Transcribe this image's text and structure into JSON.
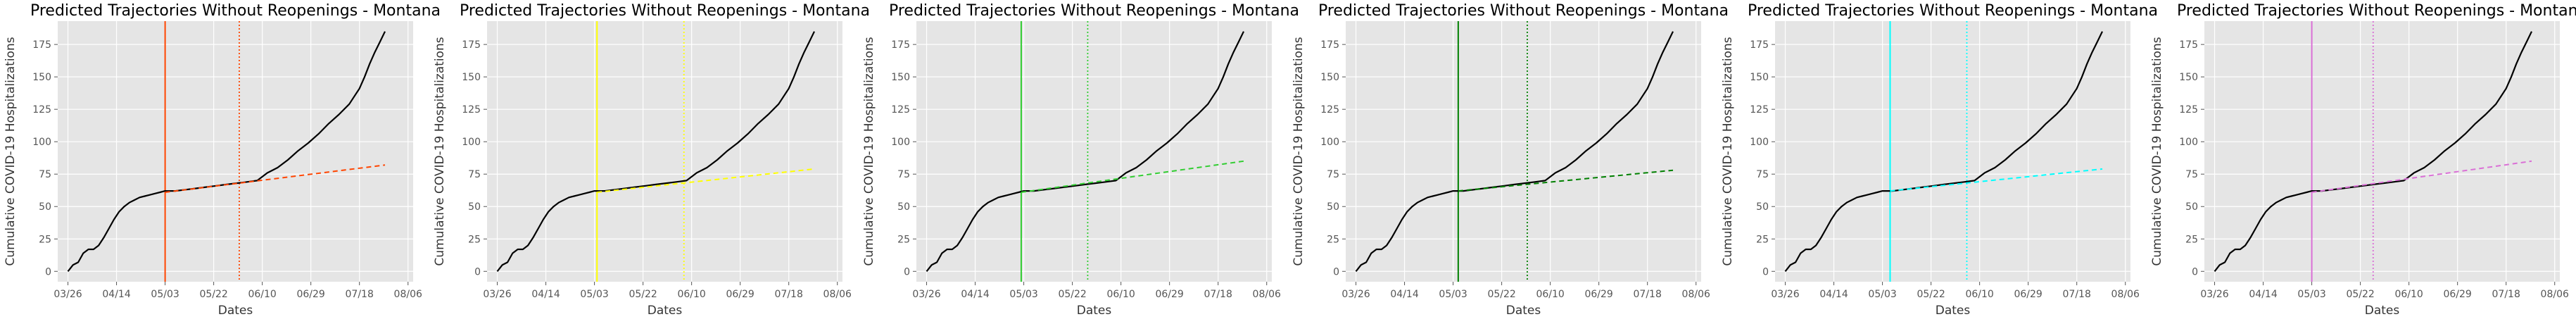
{
  "chart_data": [
    {
      "type": "line",
      "title": "Predicted Trajectories Without Reopenings - Montana",
      "xlabel": "Dates",
      "ylabel": "Cumulative COVID-19 Hospitalizations",
      "x_ticks": [
        "03/26",
        "04/14",
        "05/03",
        "05/22",
        "06/10",
        "06/29",
        "07/18",
        "08/06"
      ],
      "y_ticks": [
        0,
        25,
        50,
        75,
        100,
        125,
        150,
        175
      ],
      "xlim": [
        "03/22",
        "08/08"
      ],
      "ylim": [
        -8,
        193
      ],
      "grid": true,
      "accent_color": "#ff4500",
      "solid_vline": "05/03",
      "dotted_vline": "06/01",
      "observed": {
        "x": [
          "03/26",
          "03/28",
          "03/30",
          "04/01",
          "04/03",
          "04/05",
          "04/07",
          "04/09",
          "04/11",
          "04/13",
          "04/15",
          "04/17",
          "04/19",
          "04/21",
          "04/23",
          "04/25",
          "04/27",
          "04/29",
          "05/01",
          "05/03",
          "05/07",
          "05/11",
          "05/15",
          "05/19",
          "05/23",
          "05/27",
          "05/31",
          "06/04",
          "06/08",
          "06/12",
          "06/16",
          "06/20",
          "06/24",
          "06/28",
          "07/02",
          "07/06",
          "07/10",
          "07/14",
          "07/18",
          "07/20",
          "07/22",
          "07/24",
          "07/26",
          "07/28"
        ],
        "y": [
          0,
          5,
          7,
          14,
          17,
          17,
          20,
          26,
          33,
          40,
          46,
          50,
          53,
          55,
          57,
          58,
          59,
          60,
          61,
          62,
          62,
          63,
          64,
          65,
          66,
          67,
          68,
          69,
          70,
          76,
          80,
          86,
          93,
          99,
          106,
          114,
          121,
          129,
          141,
          150,
          160,
          169,
          177,
          185
        ]
      },
      "prediction": {
        "x": [
          "05/03",
          "07/28"
        ],
        "y": [
          61,
          82
        ]
      }
    },
    {
      "type": "line",
      "title": "Predicted Trajectories Without Reopenings - Montana",
      "xlabel": "Dates",
      "ylabel": "Cumulative COVID-19 Hospitalizations",
      "x_ticks": [
        "03/26",
        "04/14",
        "05/03",
        "05/22",
        "06/10",
        "06/29",
        "07/18",
        "08/06"
      ],
      "y_ticks": [
        0,
        25,
        50,
        75,
        100,
        125,
        150,
        175
      ],
      "xlim": [
        "03/22",
        "08/08"
      ],
      "ylim": [
        -8,
        193
      ],
      "grid": true,
      "accent_color": "#ffff00",
      "solid_vline": "05/04",
      "dotted_vline": "06/07",
      "observed": {
        "x": [
          "03/26",
          "03/28",
          "03/30",
          "04/01",
          "04/03",
          "04/05",
          "04/07",
          "04/09",
          "04/11",
          "04/13",
          "04/15",
          "04/17",
          "04/19",
          "04/21",
          "04/23",
          "04/25",
          "04/27",
          "04/29",
          "05/01",
          "05/03",
          "05/07",
          "05/11",
          "05/15",
          "05/19",
          "05/23",
          "05/27",
          "05/31",
          "06/04",
          "06/08",
          "06/12",
          "06/16",
          "06/20",
          "06/24",
          "06/28",
          "07/02",
          "07/06",
          "07/10",
          "07/14",
          "07/18",
          "07/20",
          "07/22",
          "07/24",
          "07/26",
          "07/28"
        ],
        "y": [
          0,
          5,
          7,
          14,
          17,
          17,
          20,
          26,
          33,
          40,
          46,
          50,
          53,
          55,
          57,
          58,
          59,
          60,
          61,
          62,
          62,
          63,
          64,
          65,
          66,
          67,
          68,
          69,
          70,
          76,
          80,
          86,
          93,
          99,
          106,
          114,
          121,
          129,
          141,
          150,
          160,
          169,
          177,
          185
        ]
      },
      "prediction": {
        "x": [
          "05/04",
          "07/28"
        ],
        "y": [
          61,
          79
        ]
      }
    },
    {
      "type": "line",
      "title": "Predicted Trajectories Without Reopenings - Montana",
      "xlabel": "Dates",
      "ylabel": "Cumulative COVID-19 Hospitalizations",
      "x_ticks": [
        "03/26",
        "04/14",
        "05/03",
        "05/22",
        "06/10",
        "06/29",
        "07/18",
        "08/06"
      ],
      "y_ticks": [
        0,
        25,
        50,
        75,
        100,
        125,
        150,
        175
      ],
      "xlim": [
        "03/22",
        "08/08"
      ],
      "ylim": [
        -8,
        193
      ],
      "grid": true,
      "accent_color": "#32cd32",
      "solid_vline": "05/02",
      "dotted_vline": "05/28",
      "observed": {
        "x": [
          "03/26",
          "03/28",
          "03/30",
          "04/01",
          "04/03",
          "04/05",
          "04/07",
          "04/09",
          "04/11",
          "04/13",
          "04/15",
          "04/17",
          "04/19",
          "04/21",
          "04/23",
          "04/25",
          "04/27",
          "04/29",
          "05/01",
          "05/03",
          "05/07",
          "05/11",
          "05/15",
          "05/19",
          "05/23",
          "05/27",
          "05/31",
          "06/04",
          "06/08",
          "06/12",
          "06/16",
          "06/20",
          "06/24",
          "06/28",
          "07/02",
          "07/06",
          "07/10",
          "07/14",
          "07/18",
          "07/20",
          "07/22",
          "07/24",
          "07/26",
          "07/28"
        ],
        "y": [
          0,
          5,
          7,
          14,
          17,
          17,
          20,
          26,
          33,
          40,
          46,
          50,
          53,
          55,
          57,
          58,
          59,
          60,
          61,
          62,
          62,
          63,
          64,
          65,
          66,
          67,
          68,
          69,
          70,
          76,
          80,
          86,
          93,
          99,
          106,
          114,
          121,
          129,
          141,
          150,
          160,
          169,
          177,
          185
        ]
      },
      "prediction": {
        "x": [
          "05/02",
          "07/28"
        ],
        "y": [
          61,
          85
        ]
      }
    },
    {
      "type": "line",
      "title": "Predicted Trajectories Without Reopenings - Montana",
      "xlabel": "Dates",
      "ylabel": "Cumulative COVID-19 Hospitalizations",
      "x_ticks": [
        "03/26",
        "04/14",
        "05/03",
        "05/22",
        "06/10",
        "06/29",
        "07/18",
        "08/06"
      ],
      "y_ticks": [
        0,
        25,
        50,
        75,
        100,
        125,
        150,
        175
      ],
      "xlim": [
        "03/22",
        "08/08"
      ],
      "ylim": [
        -8,
        193
      ],
      "grid": true,
      "accent_color": "#008000",
      "solid_vline": "05/05",
      "dotted_vline": "06/01",
      "observed": {
        "x": [
          "03/26",
          "03/28",
          "03/30",
          "04/01",
          "04/03",
          "04/05",
          "04/07",
          "04/09",
          "04/11",
          "04/13",
          "04/15",
          "04/17",
          "04/19",
          "04/21",
          "04/23",
          "04/25",
          "04/27",
          "04/29",
          "05/01",
          "05/03",
          "05/07",
          "05/11",
          "05/15",
          "05/19",
          "05/23",
          "05/27",
          "05/31",
          "06/04",
          "06/08",
          "06/12",
          "06/16",
          "06/20",
          "06/24",
          "06/28",
          "07/02",
          "07/06",
          "07/10",
          "07/14",
          "07/18",
          "07/20",
          "07/22",
          "07/24",
          "07/26",
          "07/28"
        ],
        "y": [
          0,
          5,
          7,
          14,
          17,
          17,
          20,
          26,
          33,
          40,
          46,
          50,
          53,
          55,
          57,
          58,
          59,
          60,
          61,
          62,
          62,
          63,
          64,
          65,
          66,
          67,
          68,
          69,
          70,
          76,
          80,
          86,
          93,
          99,
          106,
          114,
          121,
          129,
          141,
          150,
          160,
          169,
          177,
          185
        ]
      },
      "prediction": {
        "x": [
          "05/05",
          "07/28"
        ],
        "y": [
          62,
          78
        ]
      }
    },
    {
      "type": "line",
      "title": "Predicted Trajectories Without Reopenings - Montana",
      "xlabel": "Dates",
      "ylabel": "Cumulative COVID-19 Hospitalizations",
      "x_ticks": [
        "03/26",
        "04/14",
        "05/03",
        "05/22",
        "06/10",
        "06/29",
        "07/18",
        "08/06"
      ],
      "y_ticks": [
        0,
        25,
        50,
        75,
        100,
        125,
        150,
        175
      ],
      "xlim": [
        "03/22",
        "08/08"
      ],
      "ylim": [
        -8,
        193
      ],
      "grid": true,
      "accent_color": "#00ffff",
      "solid_vline": "05/06",
      "dotted_vline": "06/05",
      "observed": {
        "x": [
          "03/26",
          "03/28",
          "03/30",
          "04/01",
          "04/03",
          "04/05",
          "04/07",
          "04/09",
          "04/11",
          "04/13",
          "04/15",
          "04/17",
          "04/19",
          "04/21",
          "04/23",
          "04/25",
          "04/27",
          "04/29",
          "05/01",
          "05/03",
          "05/07",
          "05/11",
          "05/15",
          "05/19",
          "05/23",
          "05/27",
          "05/31",
          "06/04",
          "06/08",
          "06/12",
          "06/16",
          "06/20",
          "06/24",
          "06/28",
          "07/02",
          "07/06",
          "07/10",
          "07/14",
          "07/18",
          "07/20",
          "07/22",
          "07/24",
          "07/26",
          "07/28"
        ],
        "y": [
          0,
          5,
          7,
          14,
          17,
          17,
          20,
          26,
          33,
          40,
          46,
          50,
          53,
          55,
          57,
          58,
          59,
          60,
          61,
          62,
          62,
          63,
          64,
          65,
          66,
          67,
          68,
          69,
          70,
          76,
          80,
          86,
          93,
          99,
          106,
          114,
          121,
          129,
          141,
          150,
          160,
          169,
          177,
          185
        ]
      },
      "prediction": {
        "x": [
          "05/06",
          "07/28"
        ],
        "y": [
          62,
          79
        ]
      }
    },
    {
      "type": "line",
      "title": "Predicted Trajectories Without Reopenings - Montana",
      "xlabel": "Dates",
      "ylabel": "Cumulative COVID-19 Hospitalizations",
      "x_ticks": [
        "03/26",
        "04/14",
        "05/03",
        "05/22",
        "06/10",
        "06/29",
        "07/18",
        "08/06"
      ],
      "y_ticks": [
        0,
        25,
        50,
        75,
        100,
        125,
        150,
        175
      ],
      "xlim": [
        "03/22",
        "08/08"
      ],
      "ylim": [
        -8,
        193
      ],
      "grid": true,
      "accent_color": "#da70d6",
      "solid_vline": "05/03",
      "dotted_vline": "05/27",
      "observed": {
        "x": [
          "03/26",
          "03/28",
          "03/30",
          "04/01",
          "04/03",
          "04/05",
          "04/07",
          "04/09",
          "04/11",
          "04/13",
          "04/15",
          "04/17",
          "04/19",
          "04/21",
          "04/23",
          "04/25",
          "04/27",
          "04/29",
          "05/01",
          "05/03",
          "05/07",
          "05/11",
          "05/15",
          "05/19",
          "05/23",
          "05/27",
          "05/31",
          "06/04",
          "06/08",
          "06/12",
          "06/16",
          "06/20",
          "06/24",
          "06/28",
          "07/02",
          "07/06",
          "07/10",
          "07/14",
          "07/18",
          "07/20",
          "07/22",
          "07/24",
          "07/26",
          "07/28"
        ],
        "y": [
          0,
          5,
          7,
          14,
          17,
          17,
          20,
          26,
          33,
          40,
          46,
          50,
          53,
          55,
          57,
          58,
          59,
          60,
          61,
          62,
          62,
          63,
          64,
          65,
          66,
          67,
          68,
          69,
          70,
          76,
          80,
          86,
          93,
          99,
          106,
          114,
          121,
          129,
          141,
          150,
          160,
          169,
          177,
          185
        ]
      },
      "prediction": {
        "x": [
          "05/03",
          "07/28"
        ],
        "y": [
          61,
          85
        ]
      }
    }
  ]
}
